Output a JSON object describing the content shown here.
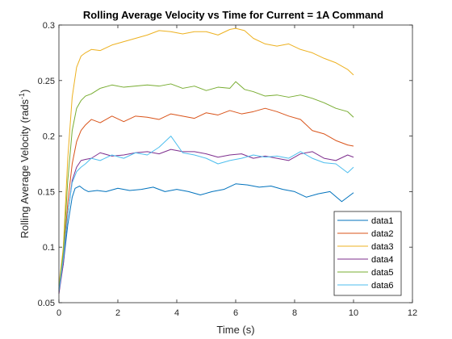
{
  "chart_data": {
    "type": "line",
    "title": "Rolling Average Velocity vs Time for Current = 1A Command",
    "xlabel": "Time (s)",
    "ylabel": {
      "main": "Rolling Average Velocity (rads",
      "sup": "-1",
      "close": ")"
    },
    "xlim": [
      0,
      12
    ],
    "ylim": [
      0.05,
      0.3
    ],
    "xticks": [
      0,
      2,
      4,
      6,
      8,
      10,
      12
    ],
    "xtick_labels": [
      "0",
      "2",
      "4",
      "6",
      "8",
      "10",
      "12"
    ],
    "yticks": [
      0.05,
      0.1,
      0.15,
      0.2,
      0.25,
      0.3
    ],
    "ytick_labels": [
      "0.05",
      "0.1",
      "0.15",
      "0.2",
      "0.25",
      "0.3"
    ],
    "grid": false,
    "legend_position": "bottom-right",
    "series": [
      {
        "name": "data1",
        "color": "#0072BD",
        "x": [
          0,
          0.15,
          0.3,
          0.45,
          0.55,
          0.7,
          0.85,
          1.0,
          1.3,
          1.6,
          2.0,
          2.4,
          2.8,
          3.2,
          3.6,
          4.0,
          4.4,
          4.8,
          5.2,
          5.6,
          6.0,
          6.4,
          6.8,
          7.2,
          7.6,
          8.0,
          8.4,
          8.8,
          9.2,
          9.6,
          10.0
        ],
        "y": [
          0.062,
          0.085,
          0.12,
          0.145,
          0.153,
          0.155,
          0.152,
          0.15,
          0.151,
          0.15,
          0.153,
          0.151,
          0.152,
          0.154,
          0.15,
          0.152,
          0.15,
          0.147,
          0.15,
          0.152,
          0.157,
          0.156,
          0.154,
          0.155,
          0.152,
          0.15,
          0.145,
          0.148,
          0.15,
          0.141,
          0.149
        ]
      },
      {
        "name": "data2",
        "color": "#D95319",
        "x": [
          0,
          0.15,
          0.3,
          0.45,
          0.6,
          0.75,
          0.9,
          1.1,
          1.4,
          1.8,
          2.2,
          2.6,
          3.0,
          3.4,
          3.8,
          4.2,
          4.6,
          5.0,
          5.4,
          5.8,
          6.2,
          6.6,
          7.0,
          7.4,
          7.8,
          8.2,
          8.6,
          9.0,
          9.4,
          9.8,
          10.0
        ],
        "y": [
          0.06,
          0.09,
          0.14,
          0.175,
          0.195,
          0.205,
          0.21,
          0.215,
          0.212,
          0.218,
          0.213,
          0.218,
          0.217,
          0.215,
          0.22,
          0.218,
          0.216,
          0.221,
          0.219,
          0.223,
          0.22,
          0.222,
          0.225,
          0.222,
          0.218,
          0.215,
          0.205,
          0.202,
          0.196,
          0.192,
          0.191
        ]
      },
      {
        "name": "data3",
        "color": "#EDB120",
        "x": [
          0,
          0.15,
          0.3,
          0.45,
          0.6,
          0.75,
          0.9,
          1.1,
          1.4,
          1.8,
          2.2,
          2.6,
          3.0,
          3.4,
          3.8,
          4.2,
          4.6,
          5.0,
          5.4,
          5.8,
          6.0,
          6.3,
          6.6,
          7.0,
          7.4,
          7.8,
          8.2,
          8.6,
          9.0,
          9.4,
          9.8,
          10.0
        ],
        "y": [
          0.065,
          0.1,
          0.18,
          0.235,
          0.262,
          0.272,
          0.275,
          0.278,
          0.277,
          0.282,
          0.285,
          0.288,
          0.291,
          0.295,
          0.294,
          0.292,
          0.294,
          0.294,
          0.291,
          0.296,
          0.297,
          0.295,
          0.288,
          0.283,
          0.281,
          0.283,
          0.278,
          0.275,
          0.27,
          0.266,
          0.26,
          0.255
        ]
      },
      {
        "name": "data4",
        "color": "#7E2F8E",
        "x": [
          0,
          0.15,
          0.3,
          0.45,
          0.6,
          0.75,
          0.9,
          1.1,
          1.4,
          1.8,
          2.2,
          2.6,
          3.0,
          3.4,
          3.8,
          4.2,
          4.6,
          5.0,
          5.4,
          5.8,
          6.2,
          6.6,
          7.0,
          7.4,
          7.8,
          8.2,
          8.6,
          9.0,
          9.4,
          9.8,
          10.0
        ],
        "y": [
          0.058,
          0.085,
          0.13,
          0.16,
          0.172,
          0.178,
          0.179,
          0.18,
          0.185,
          0.182,
          0.183,
          0.185,
          0.186,
          0.184,
          0.188,
          0.186,
          0.186,
          0.184,
          0.181,
          0.183,
          0.184,
          0.18,
          0.182,
          0.18,
          0.178,
          0.184,
          0.186,
          0.18,
          0.178,
          0.183,
          0.181
        ]
      },
      {
        "name": "data5",
        "color": "#77AC30",
        "x": [
          0,
          0.15,
          0.3,
          0.45,
          0.6,
          0.75,
          0.9,
          1.1,
          1.4,
          1.8,
          2.2,
          2.6,
          3.0,
          3.4,
          3.8,
          4.2,
          4.6,
          5.0,
          5.4,
          5.8,
          6.0,
          6.3,
          6.6,
          7.0,
          7.4,
          7.8,
          8.2,
          8.6,
          9.0,
          9.4,
          9.8,
          10.0
        ],
        "y": [
          0.062,
          0.095,
          0.16,
          0.205,
          0.225,
          0.232,
          0.236,
          0.238,
          0.243,
          0.246,
          0.244,
          0.245,
          0.246,
          0.245,
          0.247,
          0.243,
          0.245,
          0.241,
          0.244,
          0.243,
          0.249,
          0.242,
          0.24,
          0.236,
          0.237,
          0.235,
          0.237,
          0.234,
          0.23,
          0.225,
          0.222,
          0.217
        ]
      },
      {
        "name": "data6",
        "color": "#4DBEEE",
        "x": [
          0,
          0.15,
          0.3,
          0.45,
          0.6,
          0.75,
          0.9,
          1.1,
          1.4,
          1.8,
          2.2,
          2.6,
          3.0,
          3.4,
          3.8,
          4.2,
          4.6,
          5.0,
          5.4,
          5.8,
          6.2,
          6.6,
          7.0,
          7.4,
          7.8,
          8.2,
          8.6,
          9.0,
          9.4,
          9.8,
          10.0
        ],
        "y": [
          0.06,
          0.09,
          0.13,
          0.158,
          0.168,
          0.172,
          0.175,
          0.18,
          0.178,
          0.183,
          0.18,
          0.185,
          0.183,
          0.19,
          0.2,
          0.185,
          0.183,
          0.18,
          0.175,
          0.178,
          0.18,
          0.183,
          0.181,
          0.182,
          0.18,
          0.186,
          0.18,
          0.176,
          0.175,
          0.167,
          0.172
        ]
      }
    ]
  }
}
